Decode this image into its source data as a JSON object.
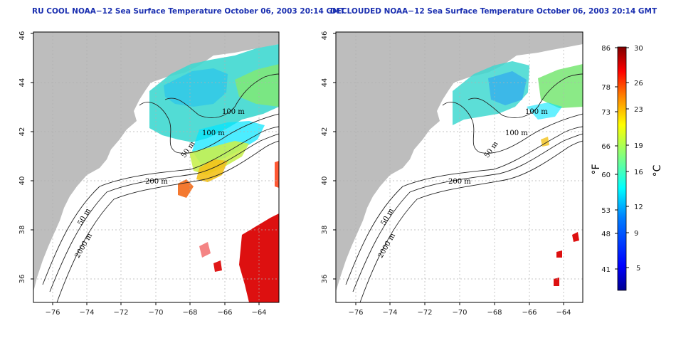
{
  "panels": [
    {
      "title": "RU COOL NOAA−12 Sea Surface Temperature October 06, 2003 20:14 GMT",
      "contour_labels": [
        "100 m",
        "100 m",
        "50 m",
        "200 m",
        "50 m",
        "2000 m"
      ]
    },
    {
      "title": "DECLOUDED NOAA−12 Sea Surface Temperature October 06, 2003 20:14 GMT",
      "contour_labels": [
        "100 m",
        "100 m",
        "50 m",
        "200 m",
        "50 m",
        "2000 m"
      ]
    }
  ],
  "axes": {
    "x_ticks": [
      "−76",
      "−74",
      "−72",
      "−70",
      "−68",
      "−66",
      "−64"
    ],
    "y_ticks": [
      "36",
      "38",
      "40",
      "42",
      "44",
      "46"
    ]
  },
  "colorbar": {
    "fahrenheit_ticks": [
      "86",
      "78",
      "73",
      "66",
      "60",
      "53",
      "48",
      "41"
    ],
    "celsius_ticks": [
      "30",
      "26",
      "23",
      "19",
      "16",
      "12",
      "9",
      "5"
    ],
    "fahrenheit_unit": "°F",
    "celsius_unit": "°C",
    "colors": [
      "#00008f",
      "#0000ff",
      "#0080ff",
      "#00ffff",
      "#80ff80",
      "#ffff00",
      "#ff8000",
      "#ff0000",
      "#800000"
    ]
  },
  "map_colors": {
    "land": "#bdbdbd",
    "ocean": "#ffffff",
    "grid": "#b0b0b0"
  }
}
